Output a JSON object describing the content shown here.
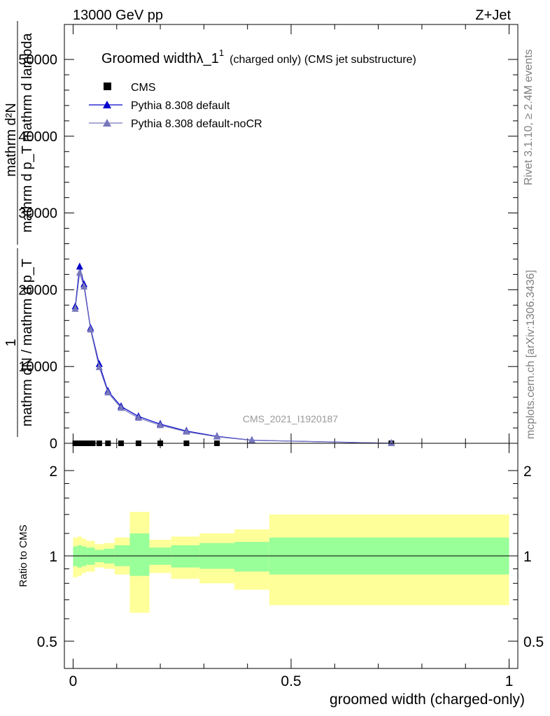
{
  "header": {
    "left": "13000 GeV pp",
    "right": "Z+Jet"
  },
  "title": {
    "main": "Groomed width",
    "lambda": "λ_1",
    "superscript": "1",
    "suffix": "(charged only) (CMS jet substructure)"
  },
  "side_labels": {
    "rivet": "Rivet 3.1.10, ≥ 2.4M events",
    "mcplots": "mcplots.cern.ch [arXiv:1306.3436]"
  },
  "watermark": "CMS_2021_I1920187",
  "ylabel_main": {
    "numerator_a": "1",
    "denominator_a": "mathrm dN / mathrm d p_T",
    "numerator_b": "mathrm d²N",
    "denominator_b": "mathrm d p_T mathrm d lambda"
  },
  "ylabel_ratio": "Ratio to CMS",
  "xlabel": "groomed width (charged-only)",
  "legend": [
    {
      "label": "CMS",
      "marker": "square",
      "color": "#000000"
    },
    {
      "label": "Pythia 8.308 default",
      "marker": "triangle",
      "color": "#0000cc"
    },
    {
      "label": "Pythia 8.308 default-noCR",
      "marker": "triangle",
      "color": "#7777bb"
    }
  ],
  "chart_data": {
    "type": "line",
    "xlim": [
      -0.02,
      1.02
    ],
    "ylim": [
      0,
      50000
    ],
    "yticks": [
      0,
      10000,
      20000,
      30000,
      40000,
      50000
    ],
    "ytick_labels": [
      "0",
      "10000",
      "20000",
      "30000",
      "40000",
      "50000"
    ],
    "xticks": [
      0,
      0.5,
      1
    ],
    "xtick_labels": [
      "0",
      "0.5",
      "1"
    ],
    "series": [
      {
        "name": "CMS",
        "color": "#000000",
        "x": [
          0.005,
          0.015,
          0.025,
          0.035,
          0.045,
          0.06,
          0.08,
          0.11,
          0.15,
          0.2,
          0.26,
          0.33,
          0.73
        ],
        "y": [
          0,
          0,
          0,
          0,
          0,
          0,
          0,
          0,
          0,
          0,
          0,
          0,
          0
        ]
      },
      {
        "name": "Pythia 8.308 default",
        "color": "#0000cc",
        "x": [
          0.005,
          0.015,
          0.025,
          0.04,
          0.06,
          0.08,
          0.11,
          0.15,
          0.2,
          0.26,
          0.33,
          0.41,
          0.73
        ],
        "y": [
          17800,
          23000,
          20700,
          15000,
          10300,
          6800,
          4800,
          3500,
          2500,
          1600,
          900,
          400,
          0
        ]
      },
      {
        "name": "Pythia 8.308 default-noCR",
        "color": "#7777bb",
        "x": [
          0.005,
          0.015,
          0.025,
          0.04,
          0.06,
          0.08,
          0.11,
          0.15,
          0.2,
          0.26,
          0.33,
          0.41,
          0.73
        ],
        "y": [
          17500,
          22200,
          20400,
          14800,
          9900,
          6600,
          4600,
          3300,
          2350,
          1500,
          850,
          380,
          0
        ]
      }
    ],
    "ratio": {
      "ylabel": "Ratio to CMS",
      "yticks": [
        0.5,
        1,
        2
      ],
      "ytick_labels": [
        "0.5",
        "1",
        "2"
      ],
      "bins": [
        {
          "x0": 0.0,
          "x1": 0.01,
          "g": [
            0.92,
            1.08
          ],
          "y": [
            0.84,
            1.16
          ]
        },
        {
          "x0": 0.01,
          "x1": 0.02,
          "g": [
            0.91,
            1.09
          ],
          "y": [
            0.85,
            1.17
          ]
        },
        {
          "x0": 0.02,
          "x1": 0.03,
          "g": [
            0.92,
            1.08
          ],
          "y": [
            0.87,
            1.15
          ]
        },
        {
          "x0": 0.03,
          "x1": 0.05,
          "g": [
            0.93,
            1.07
          ],
          "y": [
            0.88,
            1.13
          ]
        },
        {
          "x0": 0.05,
          "x1": 0.07,
          "g": [
            0.95,
            1.05
          ],
          "y": [
            0.91,
            1.1
          ]
        },
        {
          "x0": 0.07,
          "x1": 0.095,
          "g": [
            0.94,
            1.06
          ],
          "y": [
            0.9,
            1.11
          ]
        },
        {
          "x0": 0.095,
          "x1": 0.13,
          "g": [
            0.92,
            1.09
          ],
          "y": [
            0.86,
            1.16
          ]
        },
        {
          "x0": 0.13,
          "x1": 0.175,
          "g": [
            0.85,
            1.2
          ],
          "y": [
            0.63,
            1.43
          ]
        },
        {
          "x0": 0.175,
          "x1": 0.225,
          "g": [
            0.93,
            1.07
          ],
          "y": [
            0.87,
            1.14
          ]
        },
        {
          "x0": 0.225,
          "x1": 0.29,
          "g": [
            0.91,
            1.09
          ],
          "y": [
            0.83,
            1.17
          ]
        },
        {
          "x0": 0.29,
          "x1": 0.37,
          "g": [
            0.9,
            1.11
          ],
          "y": [
            0.8,
            1.2
          ]
        },
        {
          "x0": 0.37,
          "x1": 0.45,
          "g": [
            0.88,
            1.12
          ],
          "y": [
            0.76,
            1.24
          ]
        },
        {
          "x0": 0.45,
          "x1": 1.0,
          "g": [
            0.86,
            1.16
          ],
          "y": [
            0.67,
            1.4
          ]
        }
      ],
      "green": "#99ff99",
      "yellow": "#ffff99"
    }
  }
}
